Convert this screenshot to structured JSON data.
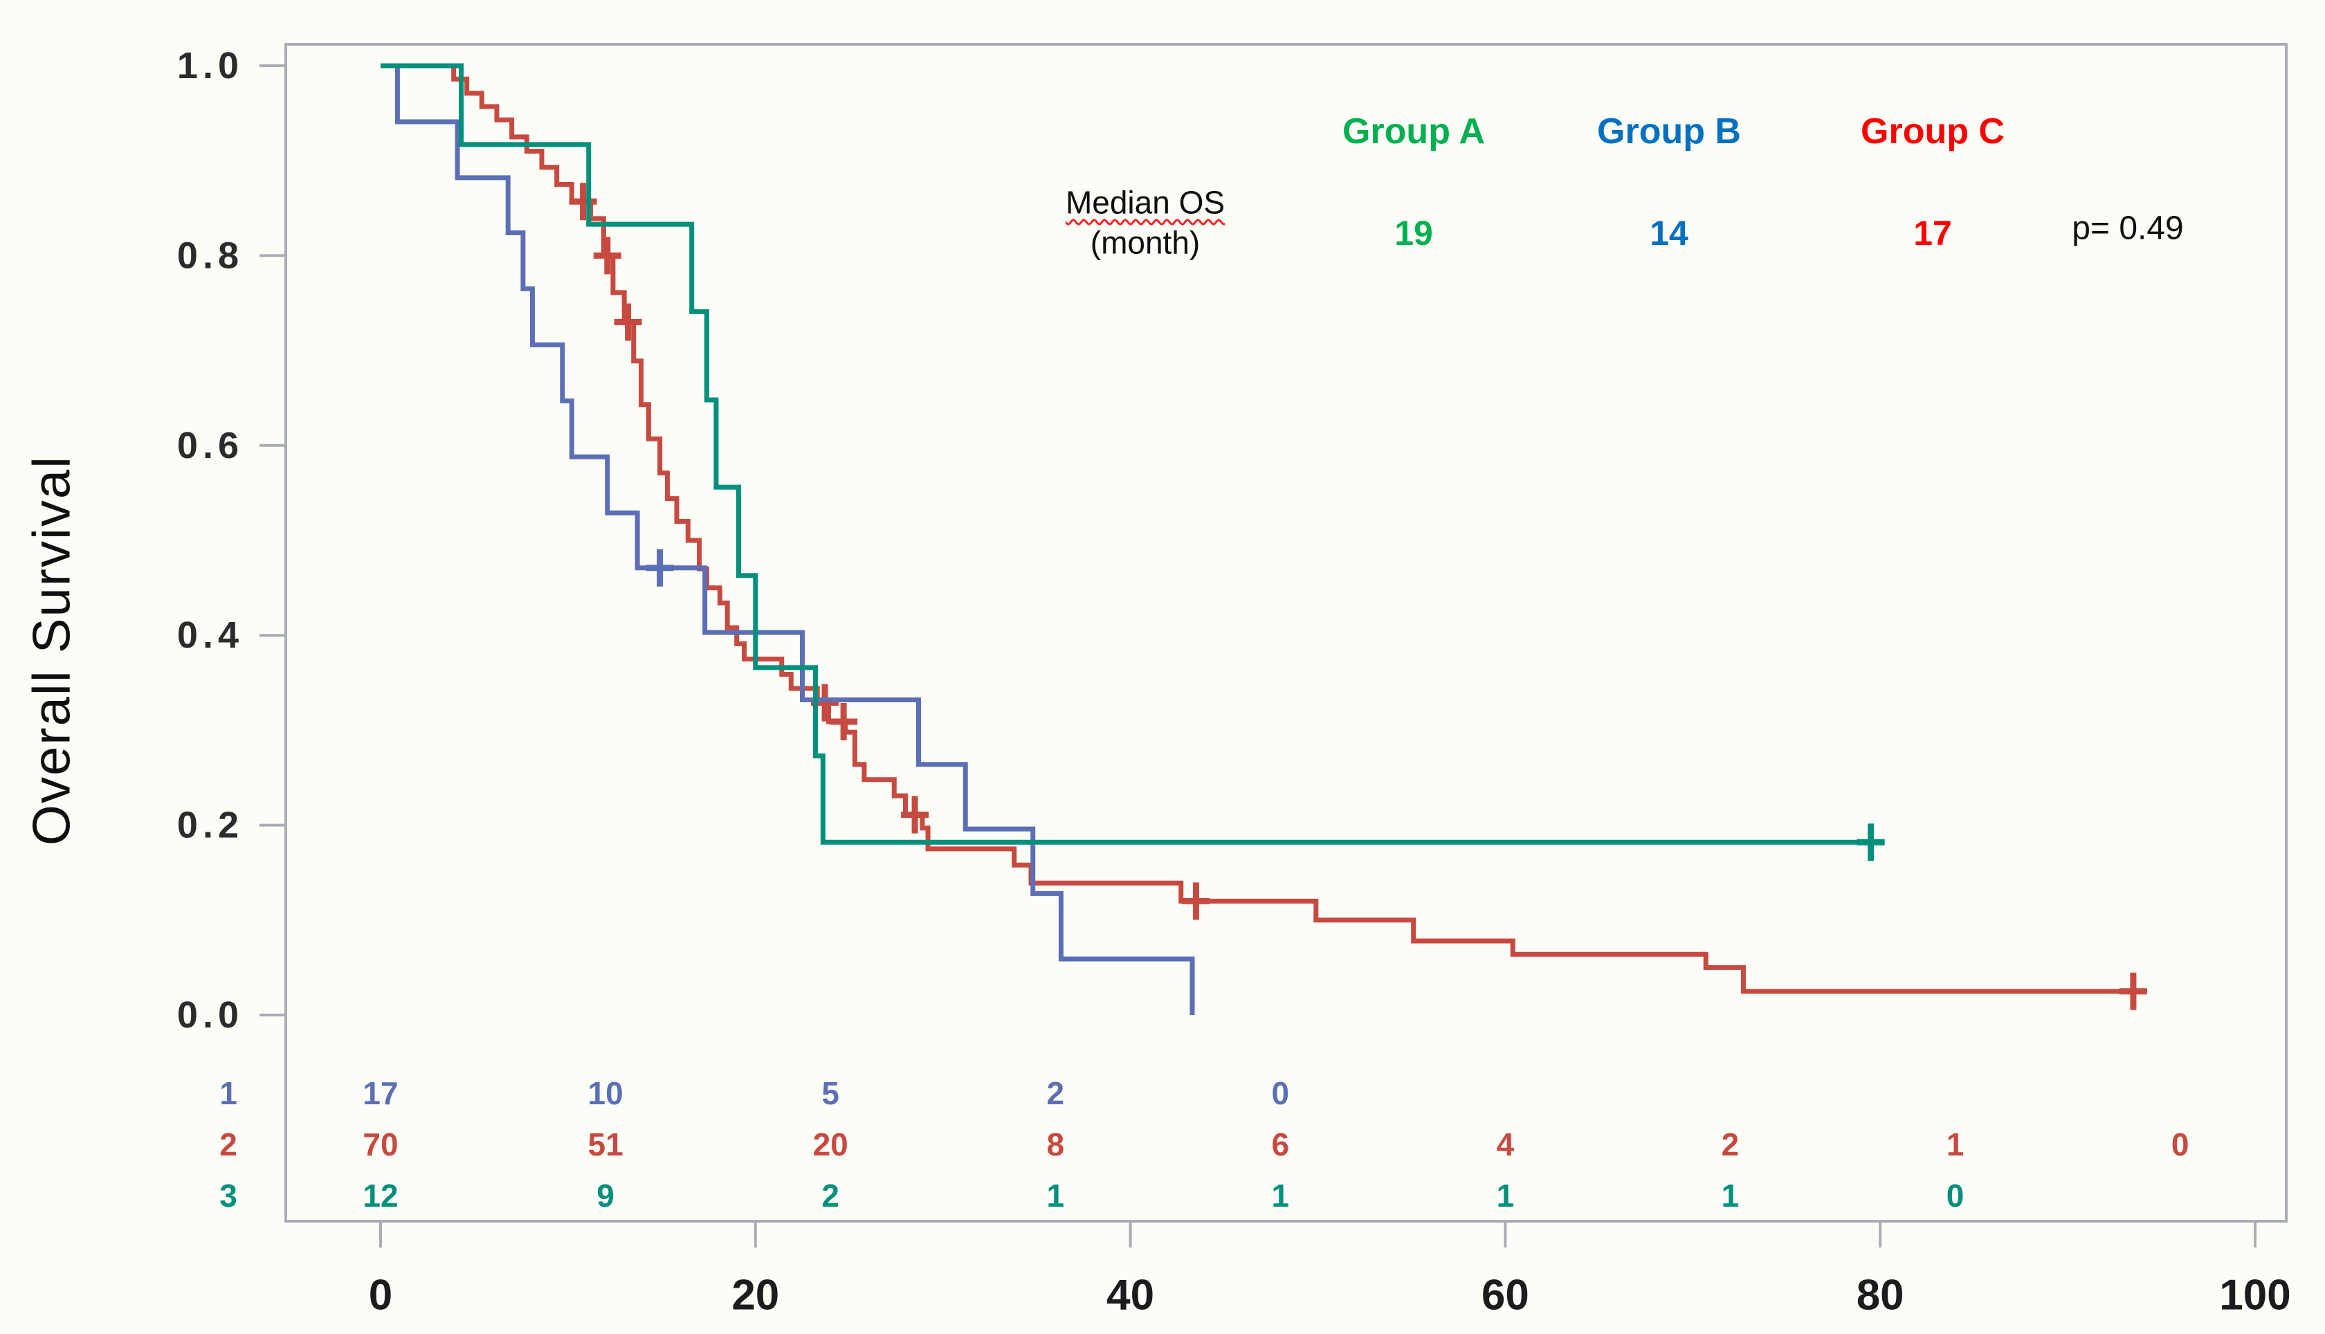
{
  "page": {
    "background_color": "#FDFDF8",
    "frame_color": "#A9ADB3"
  },
  "y_axis": {
    "label": "Overall Survival",
    "ticks": [
      {
        "label": "1.0",
        "value": 1.0
      },
      {
        "label": "0.8",
        "value": 0.8
      },
      {
        "label": "0.6",
        "value": 0.6
      },
      {
        "label": "0.4",
        "value": 0.4
      },
      {
        "label": "0.2",
        "value": 0.2
      },
      {
        "label": "0.0",
        "value": 0.0
      }
    ],
    "range": [
      0,
      1
    ]
  },
  "x_axis": {
    "ticks": [
      {
        "label": "0",
        "value": 0
      },
      {
        "label": "20",
        "value": 20
      },
      {
        "label": "40",
        "value": 40
      },
      {
        "label": "60",
        "value": 60
      },
      {
        "label": "80",
        "value": 80
      },
      {
        "label": "100",
        "value": 100
      }
    ],
    "range": [
      0,
      100
    ]
  },
  "legend": {
    "median_label": "Median OS",
    "median_unit": "(month)",
    "p_value": "p= 0.49",
    "groups": [
      {
        "label": "Group A",
        "median": "19",
        "text_color": "#00B050"
      },
      {
        "label": "Group B",
        "median": "14",
        "text_color": "#0070C0"
      },
      {
        "label": "Group C",
        "median": "17",
        "text_color": "#FF0000"
      }
    ]
  },
  "chart_data": {
    "type": "line",
    "subtype": "kaplan-meier-step",
    "title": "",
    "xlabel": "",
    "ylabel": "Overall Survival",
    "xlim": [
      0,
      100
    ],
    "ylim": [
      0,
      1
    ],
    "grid": false,
    "series": [
      {
        "id": "group-a",
        "name": "Group A",
        "color": "#00907B",
        "legend_color": "#00B050",
        "median_os_months": 19,
        "steps": [
          [
            0,
            1.0
          ],
          [
            4.3,
            0.917
          ],
          [
            11.1,
            0.833
          ],
          [
            16.6,
            0.741
          ],
          [
            17.4,
            0.648
          ],
          [
            17.9,
            0.556
          ],
          [
            19.1,
            0.463
          ],
          [
            20.0,
            0.366
          ],
          [
            23.2,
            0.273
          ],
          [
            23.6,
            0.182
          ],
          [
            79.5,
            0.182
          ]
        ],
        "censors": [
          [
            79.5,
            0.182
          ]
        ]
      },
      {
        "id": "group-b",
        "name": "Group B",
        "color": "#5C6FB5",
        "legend_color": "#0070C0",
        "median_os_months": 14,
        "steps": [
          [
            0,
            1.0
          ],
          [
            0.9,
            0.941
          ],
          [
            4.1,
            0.882
          ],
          [
            6.8,
            0.824
          ],
          [
            7.6,
            0.765
          ],
          [
            8.1,
            0.706
          ],
          [
            9.7,
            0.647
          ],
          [
            10.2,
            0.588
          ],
          [
            12.1,
            0.529
          ],
          [
            13.7,
            0.471
          ],
          [
            17.3,
            0.403
          ],
          [
            22.5,
            0.332
          ],
          [
            28.7,
            0.264
          ],
          [
            31.2,
            0.196
          ],
          [
            34.8,
            0.128
          ],
          [
            36.3,
            0.059
          ],
          [
            43.3,
            0.0
          ]
        ],
        "censors": [
          [
            14.9,
            0.471
          ]
        ]
      },
      {
        "id": "group-c",
        "name": "Group C",
        "color": "#C74A40",
        "legend_color": "#FF0000",
        "median_os_months": 17,
        "steps": [
          [
            0,
            1.0
          ],
          [
            3.9,
            0.986
          ],
          [
            4.6,
            0.971
          ],
          [
            5.4,
            0.957
          ],
          [
            6.2,
            0.943
          ],
          [
            7.0,
            0.925
          ],
          [
            7.8,
            0.91
          ],
          [
            8.6,
            0.893
          ],
          [
            9.4,
            0.875
          ],
          [
            10.2,
            0.857
          ],
          [
            11.2,
            0.839
          ],
          [
            11.9,
            0.8
          ],
          [
            12.4,
            0.761
          ],
          [
            13.0,
            0.73
          ],
          [
            13.5,
            0.689
          ],
          [
            13.9,
            0.643
          ],
          [
            14.3,
            0.607
          ],
          [
            14.9,
            0.571
          ],
          [
            15.3,
            0.544
          ],
          [
            15.8,
            0.52
          ],
          [
            16.4,
            0.5
          ],
          [
            17.0,
            0.47
          ],
          [
            17.4,
            0.45
          ],
          [
            18.1,
            0.434
          ],
          [
            18.5,
            0.408
          ],
          [
            19.0,
            0.391
          ],
          [
            19.4,
            0.375
          ],
          [
            21.4,
            0.359
          ],
          [
            21.9,
            0.344
          ],
          [
            23.3,
            0.329
          ],
          [
            23.9,
            0.309
          ],
          [
            24.8,
            0.298
          ],
          [
            25.3,
            0.264
          ],
          [
            25.8,
            0.248
          ],
          [
            27.4,
            0.231
          ],
          [
            28.0,
            0.211
          ],
          [
            28.9,
            0.197
          ],
          [
            29.2,
            0.175
          ],
          [
            33.8,
            0.158
          ],
          [
            34.7,
            0.139
          ],
          [
            42.7,
            0.12
          ],
          [
            49.9,
            0.1
          ],
          [
            55.1,
            0.078
          ],
          [
            60.4,
            0.064
          ],
          [
            70.7,
            0.05
          ],
          [
            72.7,
            0.025
          ],
          [
            93.5,
            0.025
          ]
        ],
        "censors": [
          [
            10.8,
            0.857
          ],
          [
            12.1,
            0.8
          ],
          [
            13.2,
            0.73
          ],
          [
            23.7,
            0.329
          ],
          [
            24.7,
            0.309
          ],
          [
            28.5,
            0.211
          ],
          [
            43.5,
            0.12
          ],
          [
            93.5,
            0.025
          ]
        ]
      }
    ],
    "at_risk_table": {
      "rows": [
        {
          "label": "1",
          "series_id": "group-b",
          "color": "#5C6FB5",
          "times": [
            0,
            12,
            24,
            36,
            48
          ],
          "counts": [
            "17",
            "10",
            "5",
            "2",
            "0"
          ]
        },
        {
          "label": "2",
          "series_id": "group-c",
          "color": "#C74A40",
          "times": [
            0,
            12,
            24,
            36,
            48,
            60,
            72,
            84,
            96
          ],
          "counts": [
            "70",
            "51",
            "20",
            "8",
            "6",
            "4",
            "2",
            "1",
            "0"
          ]
        },
        {
          "label": "3",
          "series_id": "group-a",
          "color": "#00907B",
          "times": [
            0,
            12,
            24,
            36,
            48,
            60,
            72,
            84
          ],
          "counts": [
            "12",
            "9",
            "2",
            "1",
            "1",
            "1",
            "1",
            "0"
          ]
        }
      ]
    }
  }
}
